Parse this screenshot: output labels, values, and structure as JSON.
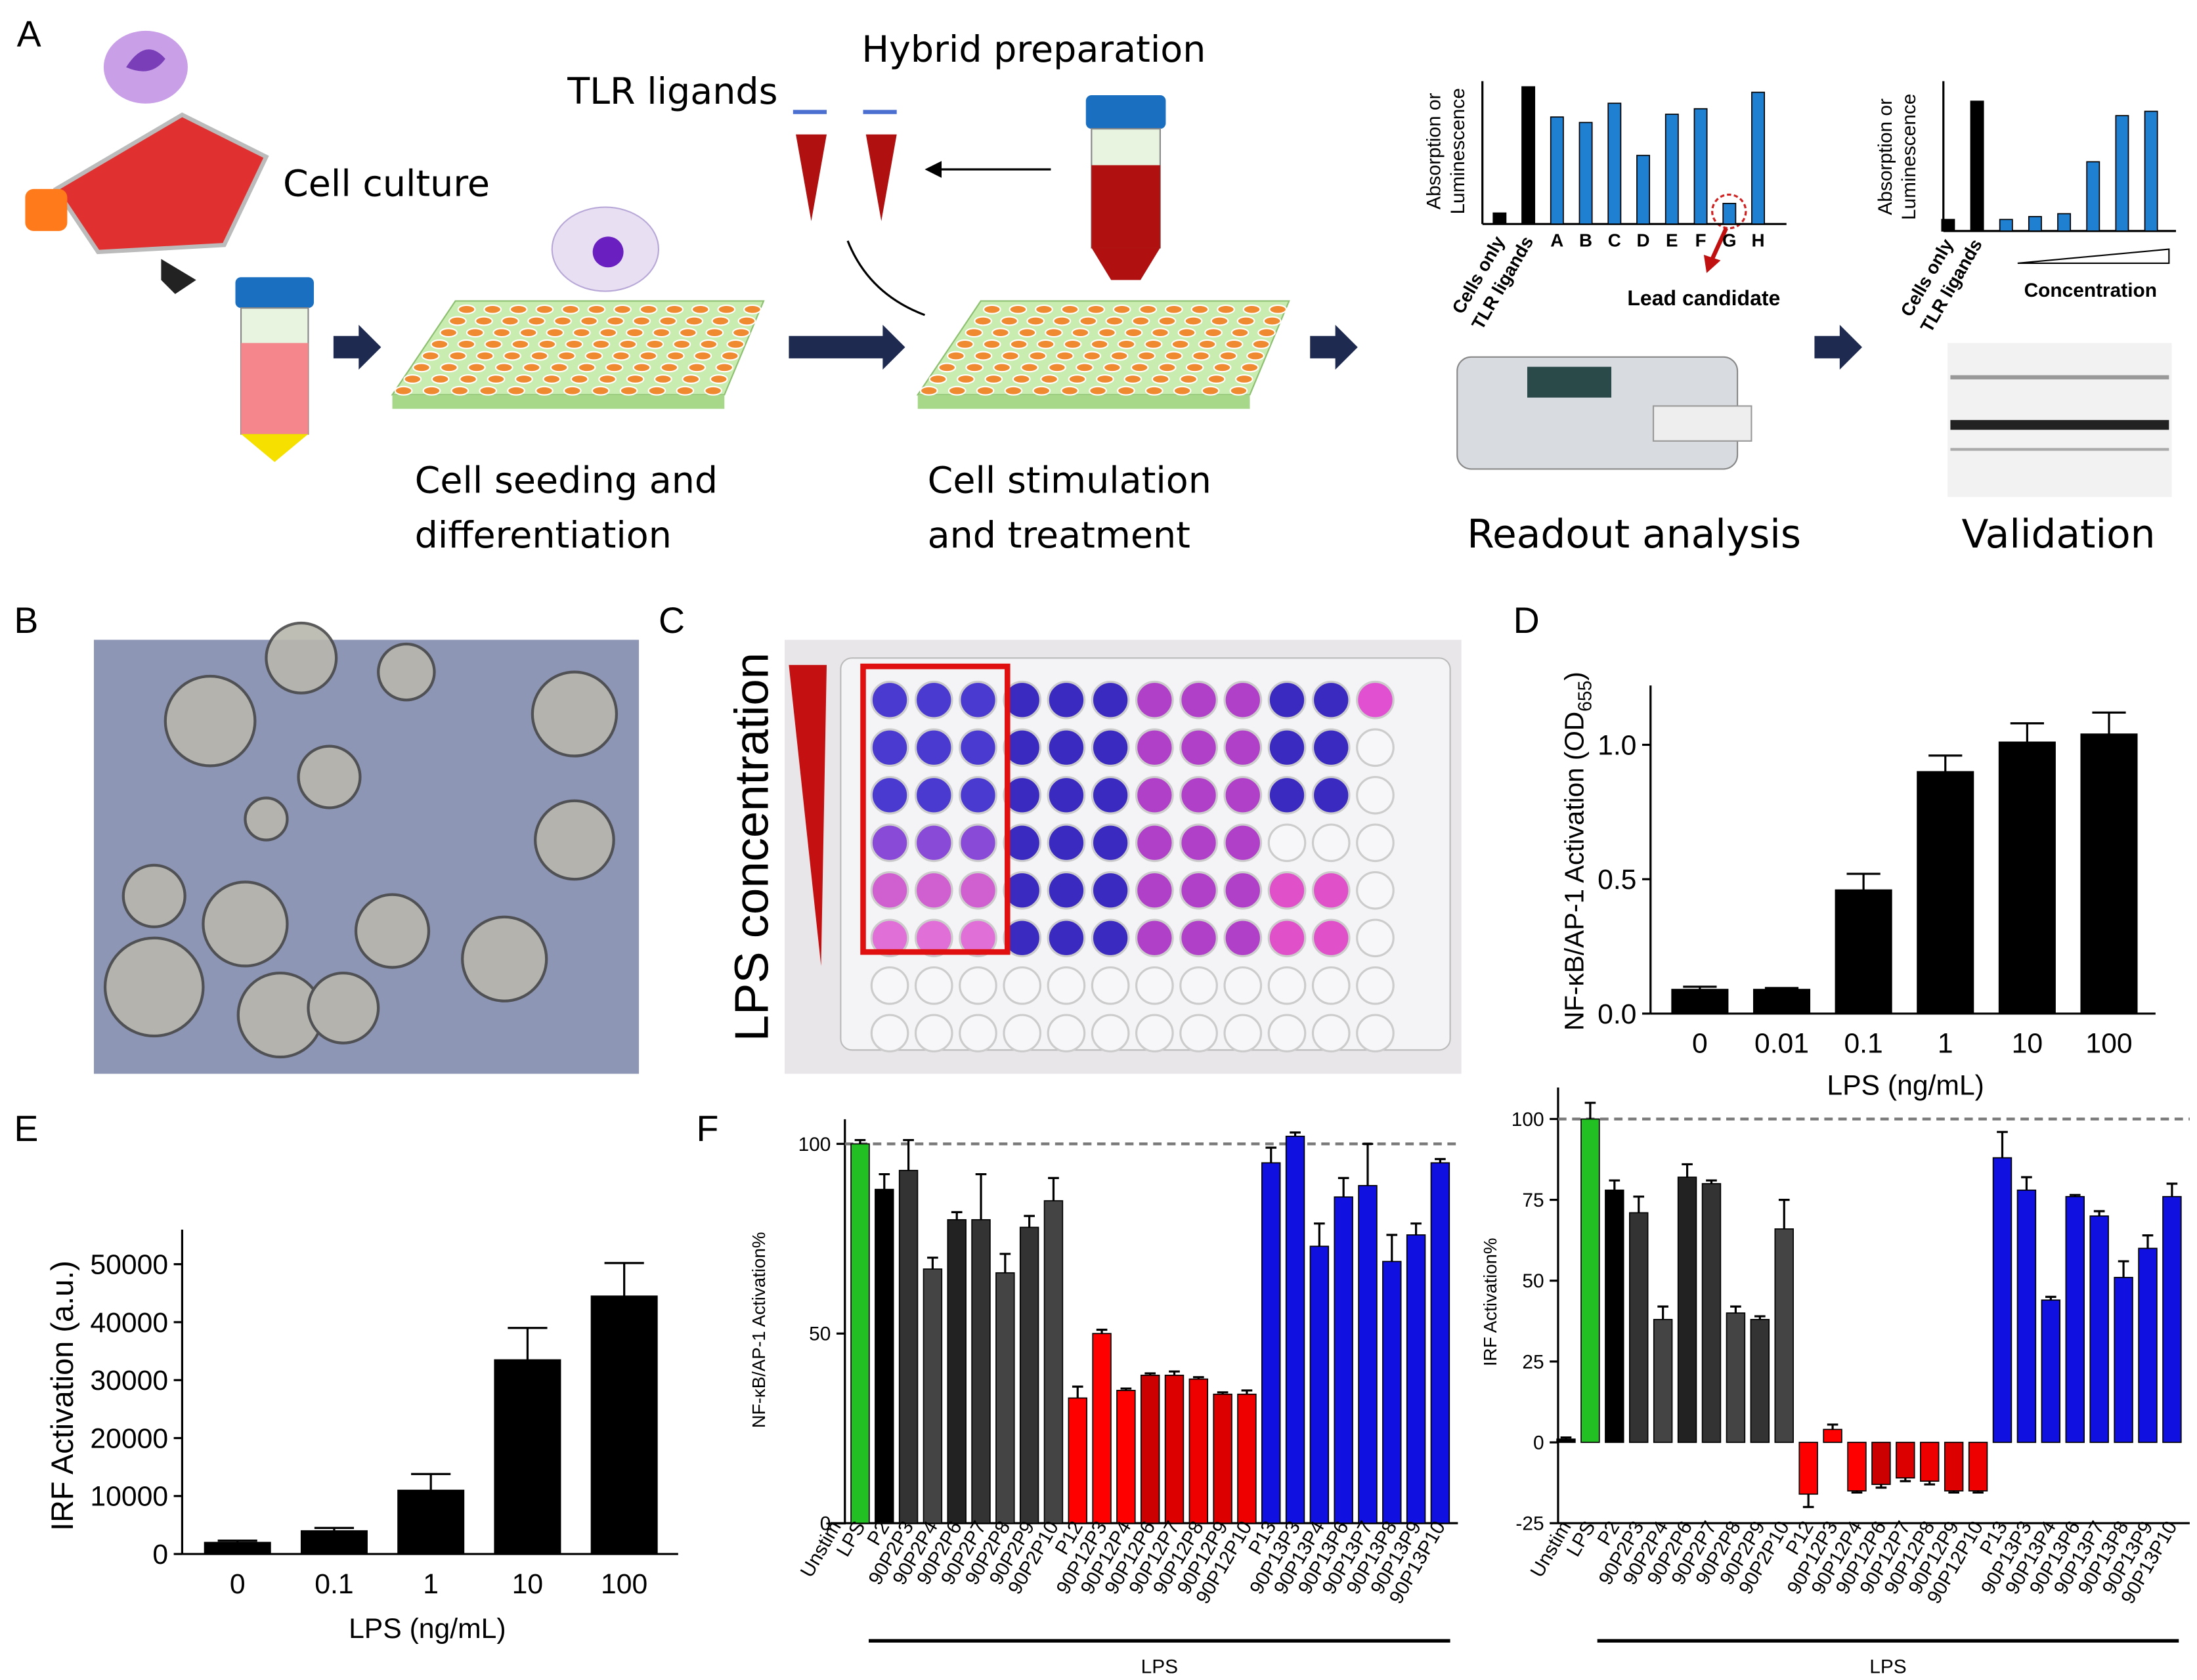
{
  "panels": [
    "A",
    "B",
    "C",
    "D",
    "E",
    "F"
  ],
  "schematic": {
    "cell_culture": "Cell culture",
    "tlr_ligands": "TLR ligands",
    "hybrid": "Hybrid preparation",
    "seeding": [
      "Cell seeding and",
      "differentiation"
    ],
    "stimulation": [
      "Cell stimulation",
      "and treatment"
    ],
    "readout": "Readout analysis",
    "validation": "Validation"
  },
  "plate_label": "LPS concentration",
  "chart_data": [
    {
      "type": "bar",
      "ylabel": [
        "Absorption or",
        "Luminescence"
      ],
      "categories": [
        "Cells only",
        "TLR ligands",
        "A",
        "B",
        "C",
        "D",
        "E",
        "F",
        "G",
        "H"
      ],
      "values": [
        8,
        100,
        78,
        74,
        88,
        50,
        80,
        84,
        15,
        96
      ],
      "colors": [
        "#000000",
        "#000000",
        "#1f7fd0",
        "#1f7fd0",
        "#1f7fd0",
        "#1f7fd0",
        "#1f7fd0",
        "#1f7fd0",
        "#1f7fd0",
        "#1f7fd0"
      ],
      "ylim": [
        0,
        100
      ],
      "annotation": "Lead candidate"
    },
    {
      "type": "bar",
      "ylabel": [
        "Absorption or",
        "Luminescence"
      ],
      "categories": [
        "Cells only",
        "TLR ligands",
        null,
        null,
        null,
        null,
        null,
        null
      ],
      "values": [
        8,
        90,
        8,
        10,
        12,
        48,
        80,
        83
      ],
      "colors": [
        "#000000",
        "#000000",
        "#1f7fd0",
        "#1f7fd0",
        "#1f7fd0",
        "#1f7fd0",
        "#1f7fd0",
        "#1f7fd0"
      ],
      "ylim": [
        0,
        100
      ],
      "xlabel": "Concentration"
    },
    {
      "type": "bar",
      "ylabel": "NF-κB/AP-1 Activation (OD",
      "ylabel_sub": "655",
      "ylabel_end": ")",
      "xlabel": "LPS (ng/mL)",
      "categories": [
        "0",
        "0.01",
        "0.1",
        "1",
        "10",
        "100"
      ],
      "values": [
        0.09,
        0.09,
        0.46,
        0.9,
        1.01,
        1.04
      ],
      "errors": [
        0.01,
        0.005,
        0.06,
        0.06,
        0.07,
        0.08
      ],
      "color": "#000000",
      "ylim": [
        0,
        1.2
      ],
      "yticks": [
        {
          "value": 0,
          "label": "0.0"
        },
        {
          "value": 0.5,
          "label": "0.5"
        },
        {
          "value": 1,
          "label": "1.0"
        }
      ]
    },
    {
      "type": "bar",
      "ylabel": "IRF Activation (a.u.)",
      "xlabel": "LPS (ng/mL)",
      "categories": [
        "0",
        "0.1",
        "1",
        "10",
        "100"
      ],
      "values": [
        2000,
        4000,
        11000,
        33500,
        44500
      ],
      "errors": [
        300,
        500,
        2800,
        5500,
        5700
      ],
      "color": "#000000",
      "ylim": [
        0,
        55000
      ],
      "yticks": [
        0,
        10000,
        20000,
        30000,
        40000,
        50000
      ]
    },
    {
      "type": "bar",
      "ylabel": "NF-κB/AP-1 Activation%",
      "group_label": "LPS",
      "reference_line": 100,
      "categories": [
        "Unstim",
        "LPS",
        "P2",
        "90P2P3",
        "90P2P4",
        "90P2P6",
        "90P2P7",
        "90P2P8",
        "90P2P9",
        "90P2P10",
        "P12",
        "90P12P3",
        "90P12P4",
        "90P12P6",
        "90P12P7",
        "90P12P8",
        "90P12P9",
        "90P12P10",
        "P13",
        "90P13P3",
        "90P13P4",
        "90P13P6",
        "90P13P7",
        "90P13P8",
        "90P13P9",
        "90P13P10"
      ],
      "values": [
        0,
        100,
        88,
        93,
        67,
        80,
        80,
        66,
        78,
        85,
        33,
        50,
        35,
        39,
        39,
        38,
        34,
        34,
        95,
        102,
        73,
        86,
        89,
        69,
        76,
        95
      ],
      "errors": [
        0,
        1,
        4,
        8,
        3,
        2,
        12,
        5,
        3,
        6,
        3,
        1,
        0.5,
        0.5,
        1,
        0.5,
        0.5,
        1,
        4,
        1,
        6,
        5,
        11,
        7,
        3,
        1
      ],
      "colors": [
        "#000000",
        "#22c022",
        "#000000",
        "#333333",
        "#444444",
        "#222222",
        "#333333",
        "#444444",
        "#333333",
        "#444444",
        "#ff0000",
        "#ff0000",
        "#ff0000",
        "#cc0000",
        "#dd0000",
        "#ee0000",
        "#dd0000",
        "#ee0000",
        "#1010e0",
        "#1010e0",
        "#1010e0",
        "#1010e0",
        "#1010e0",
        "#1010e0",
        "#1010e0",
        "#1010e0"
      ],
      "ylim": [
        0,
        105
      ],
      "yticks": [
        0,
        50,
        100
      ]
    },
    {
      "type": "bar",
      "ylabel": "IRF Activation%",
      "group_label": "LPS",
      "reference_line": 100,
      "categories": [
        "Unstim",
        "LPS",
        "P2",
        "90P2P3",
        "90P2P4",
        "90P2P6",
        "90P2P7",
        "90P2P8",
        "90P2P9",
        "90P2P10",
        "P12",
        "90P12P3",
        "90P12P4",
        "90P12P6",
        "90P12P7",
        "90P12P8",
        "90P12P9",
        "90P12P10",
        "P13",
        "90P13P3",
        "90P13P4",
        "90P13P6",
        "90P13P7",
        "90P13P8",
        "90P13P9",
        "90P13P10"
      ],
      "values": [
        1,
        100,
        78,
        71,
        38,
        82,
        80,
        40,
        38,
        66,
        -16,
        4,
        -15,
        -13,
        -11,
        -12,
        -15,
        -15,
        88,
        78,
        44,
        76,
        70,
        51,
        60,
        76
      ],
      "errors": [
        0.5,
        5,
        3,
        5,
        4,
        4,
        1,
        2,
        1,
        9,
        4,
        1.5,
        0.5,
        1,
        1,
        1,
        0.5,
        0.5,
        8,
        4,
        1,
        0.5,
        1.5,
        5,
        4,
        4
      ],
      "colors": [
        "#000000",
        "#22c022",
        "#000000",
        "#333333",
        "#444444",
        "#222222",
        "#333333",
        "#444444",
        "#333333",
        "#444444",
        "#ff0000",
        "#ff0000",
        "#ff0000",
        "#cc0000",
        "#dd0000",
        "#ee0000",
        "#dd0000",
        "#ee0000",
        "#1010e0",
        "#1010e0",
        "#1010e0",
        "#1010e0",
        "#1010e0",
        "#1010e0",
        "#1010e0",
        "#1010e0"
      ],
      "ylim": [
        -25,
        108
      ],
      "yticks": [
        -25,
        0,
        25,
        50,
        75,
        100
      ]
    }
  ]
}
